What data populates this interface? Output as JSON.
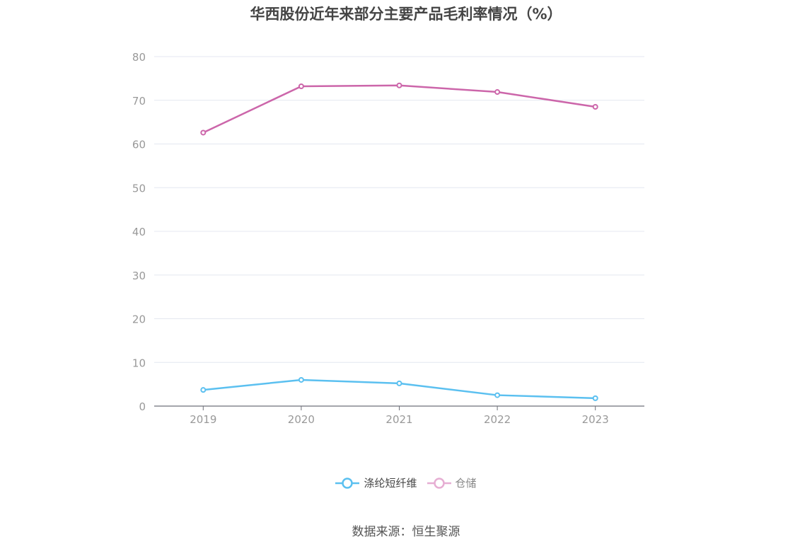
{
  "chart_data": {
    "type": "line",
    "title": "华西股份近年来部分主要产品毛利率情况（%）",
    "categories": [
      "2019",
      "2020",
      "2021",
      "2022",
      "2023"
    ],
    "ylim": [
      0,
      80
    ],
    "yticks": [
      0,
      10,
      20,
      30,
      40,
      50,
      60,
      70,
      80
    ],
    "grid": true,
    "legend_position": "bottom",
    "series": [
      {
        "name": "涤纶短纤维",
        "color": "#5bc0f0",
        "values": [
          3.7,
          6.0,
          5.2,
          2.5,
          1.8
        ]
      },
      {
        "name": "仓储",
        "color": "#cc66aa",
        "values": [
          62.6,
          73.2,
          73.4,
          71.9,
          68.5
        ]
      }
    ],
    "source": "数据来源：恒生聚源"
  }
}
